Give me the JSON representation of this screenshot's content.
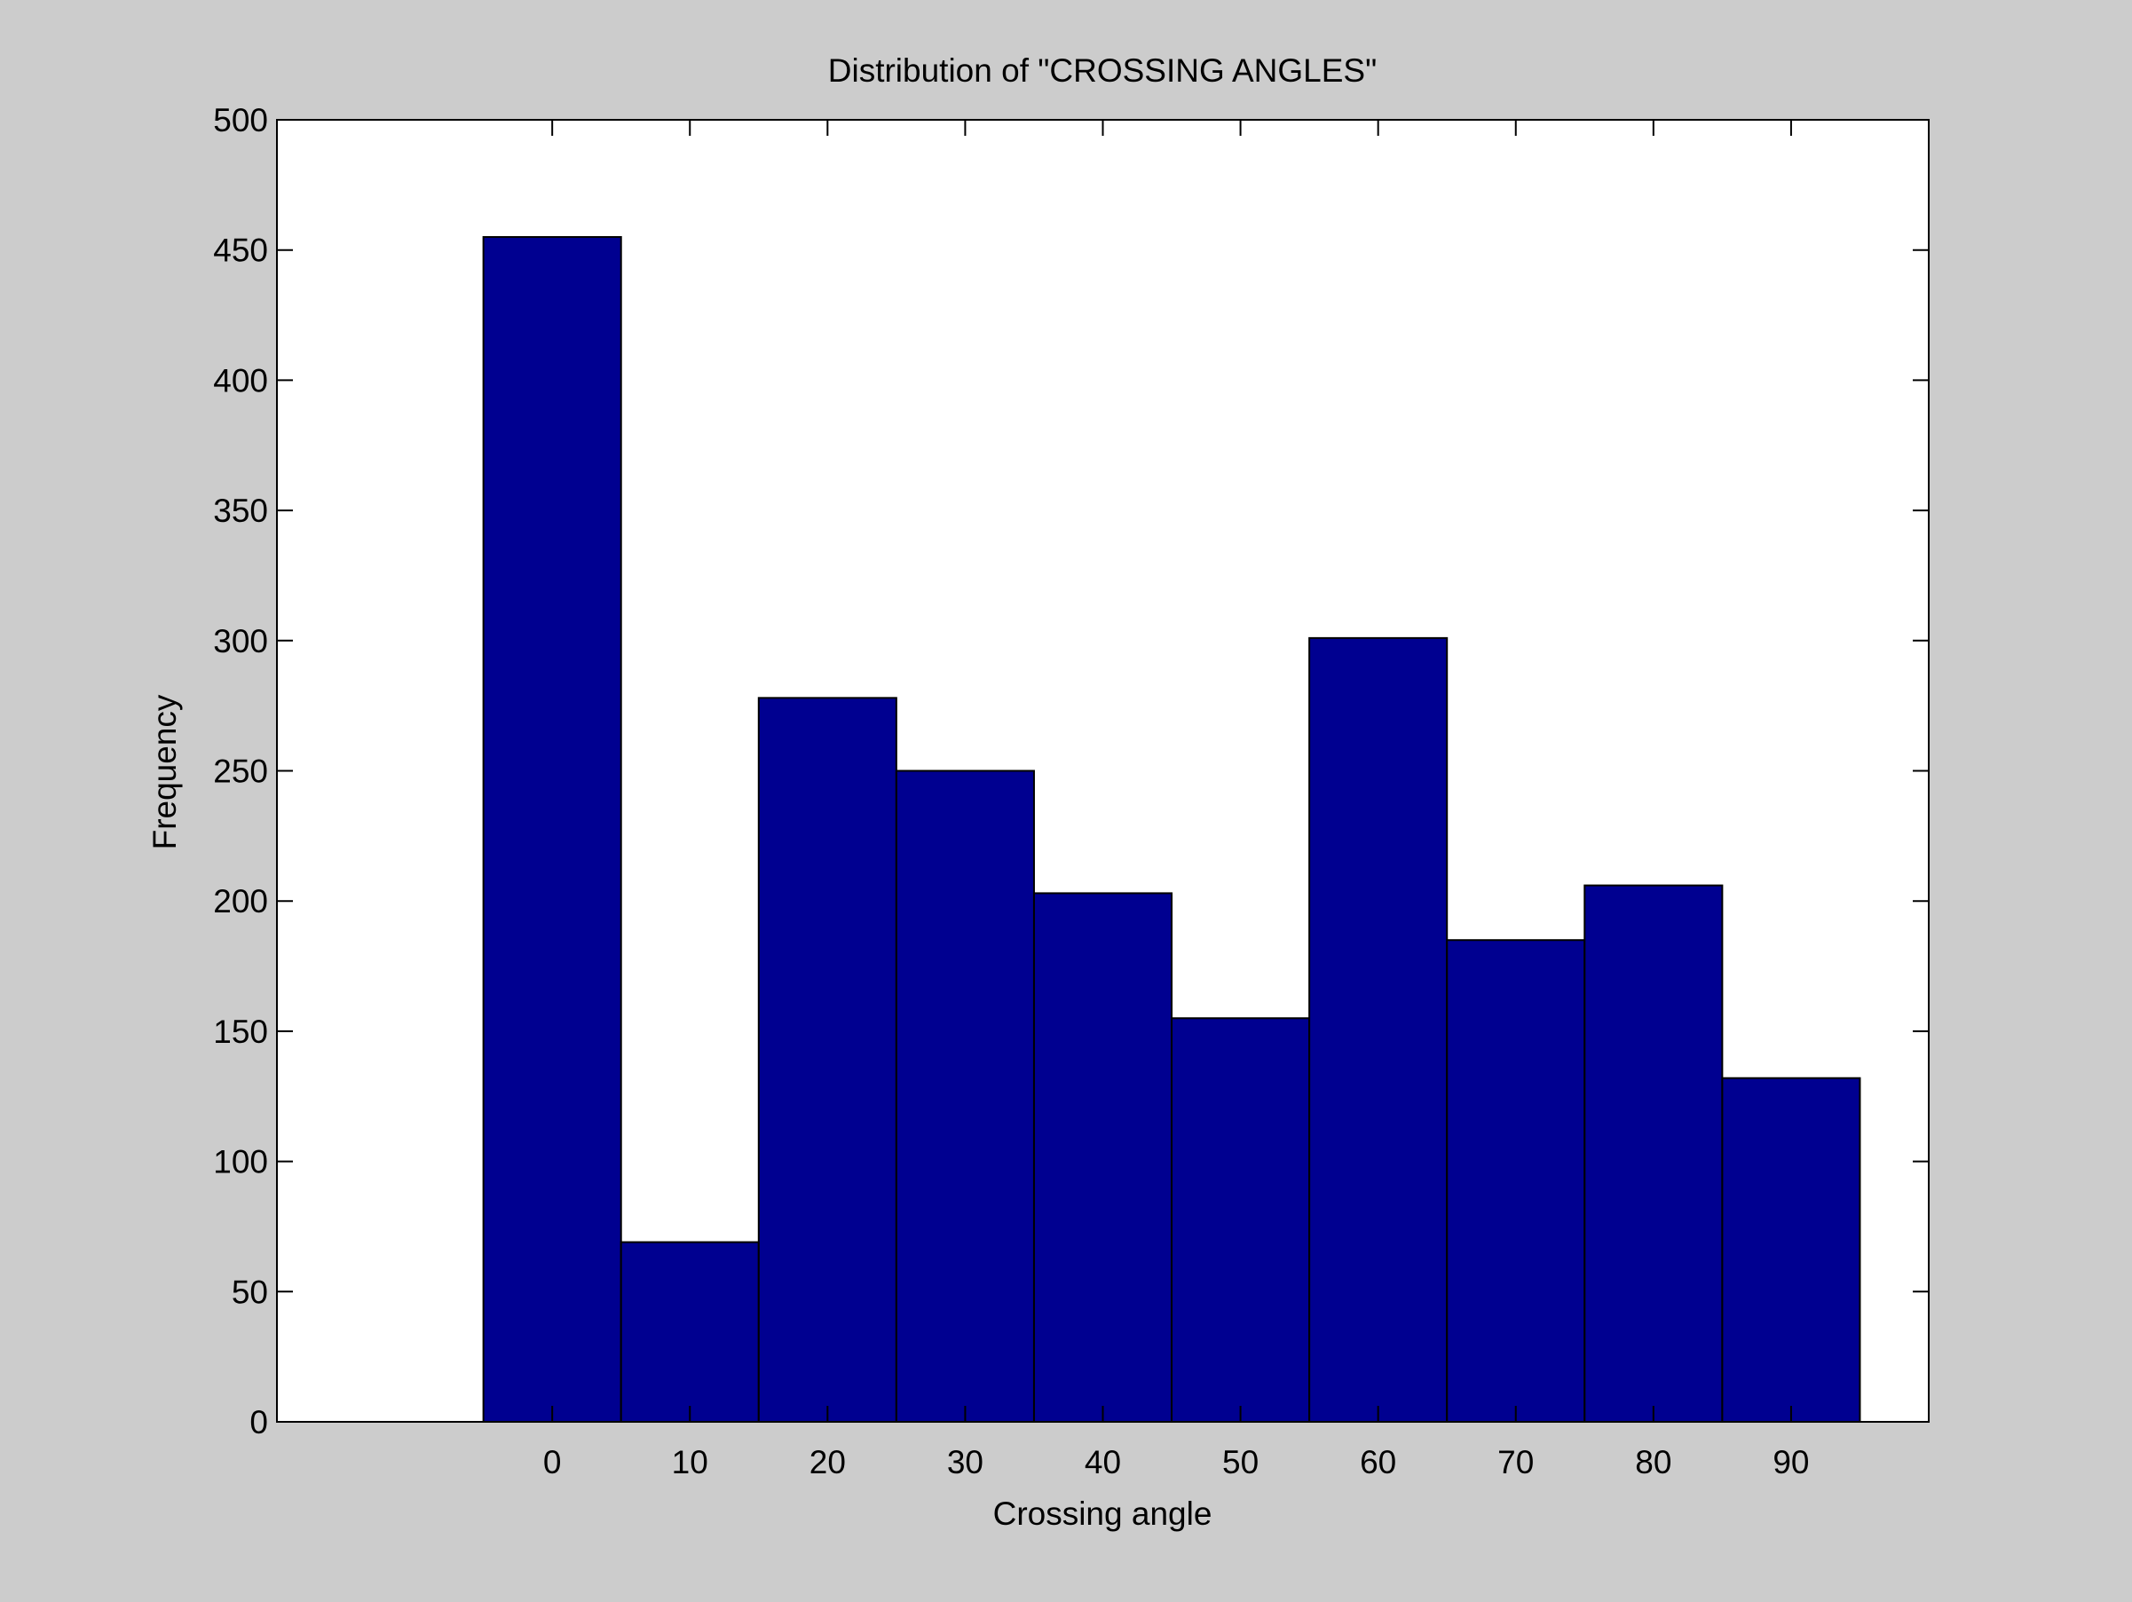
{
  "chart_data": {
    "type": "bar",
    "title": "Distribution of \"CROSSING ANGLES\"",
    "xlabel": "Crossing angle",
    "ylabel": "Frequency",
    "categories": [
      "0",
      "10",
      "20",
      "30",
      "40",
      "50",
      "60",
      "70",
      "80",
      "90"
    ],
    "x": [
      0,
      10,
      20,
      30,
      40,
      50,
      60,
      70,
      80,
      90
    ],
    "values": [
      455,
      69,
      278,
      250,
      203,
      155,
      301,
      185,
      206,
      132
    ],
    "bin_width": 10,
    "xlim": [
      -20,
      100
    ],
    "ylim": [
      0,
      500
    ],
    "yticks": [
      0,
      50,
      100,
      150,
      200,
      250,
      300,
      350,
      400,
      450,
      500
    ],
    "xticks": [
      0,
      10,
      20,
      30,
      40,
      50,
      60,
      70,
      80,
      90
    ],
    "grid": false,
    "colors": {
      "bar_fill": "#000090",
      "bar_edge": "#000000",
      "axes_background": "#ffffff",
      "figure_background": "#cccccc"
    }
  }
}
